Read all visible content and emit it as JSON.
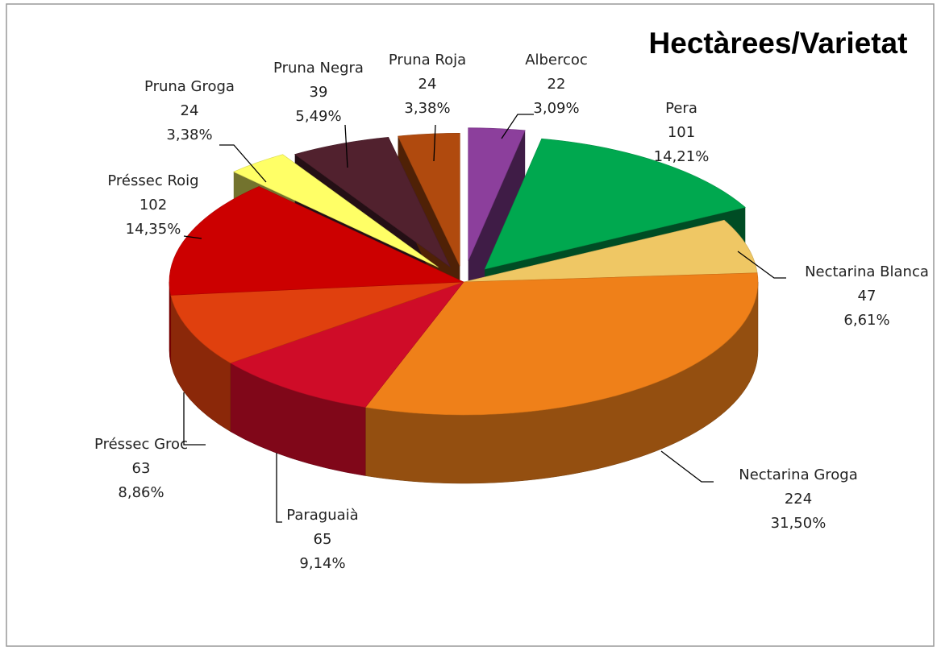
{
  "chart_data": {
    "type": "pie3d",
    "title": "Hectàrees/Varietat",
    "categories": [
      "Albercoc",
      "Pera",
      "Nectarina Blanca",
      "Nectarina Groga",
      "Paraguaià",
      "Préssec Groc",
      "Préssec Roig",
      "Pruna Groga",
      "Pruna Negra",
      "Pruna Roja"
    ],
    "values": [
      22,
      101,
      47,
      224,
      65,
      63,
      102,
      24,
      39,
      24
    ],
    "percentages": [
      3.09,
      14.21,
      6.61,
      31.5,
      9.14,
      8.86,
      14.35,
      3.38,
      5.49,
      3.38
    ],
    "percentage_labels": [
      "3,09%",
      "14,21%",
      "6,61%",
      "31,50%",
      "9,14%",
      "8,86%",
      "14,35%",
      "3,38%",
      "5,49%",
      "3,38%"
    ],
    "colors": [
      "#8c3f9c",
      "#00a84f",
      "#efc764",
      "#ef8019",
      "#cf0c28",
      "#e0400e",
      "#cc0000",
      "#ffff66",
      "#51212e",
      "#b04a0e"
    ]
  }
}
